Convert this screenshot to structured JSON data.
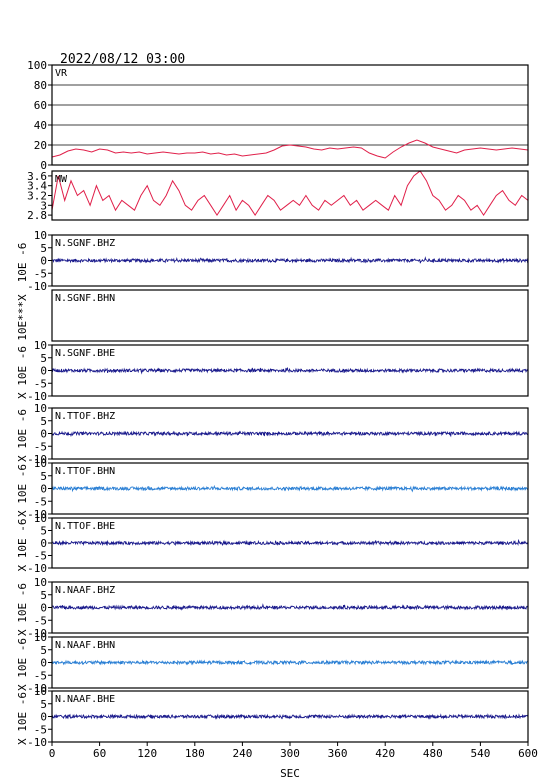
{
  "header": {
    "datetime": "2022/08/12 03:00"
  },
  "chart_data": {
    "type": "line",
    "xlabel": "SEC",
    "xlim": [
      0,
      600
    ],
    "xticks": [
      0,
      60,
      120,
      180,
      240,
      300,
      360,
      420,
      480,
      540,
      600
    ],
    "colors": {
      "vr": "#e0204a",
      "mw": "#e0204a",
      "dark_blue": "#1a1a8c",
      "light_blue": "#2a7fd4"
    },
    "panels": [
      {
        "id": "vr",
        "label": "VR",
        "ylim": [
          0,
          100
        ],
        "yticks": [
          0,
          20,
          40,
          60,
          80,
          100
        ],
        "grid": true,
        "color": "#e0204a",
        "points_x": [
          0,
          10,
          20,
          30,
          40,
          50,
          60,
          70,
          80,
          90,
          100,
          110,
          120,
          130,
          140,
          150,
          160,
          170,
          180,
          190,
          200,
          210,
          220,
          230,
          240,
          250,
          260,
          270,
          280,
          290,
          300,
          310,
          320,
          330,
          340,
          350,
          360,
          370,
          380,
          390,
          400,
          410,
          420,
          430,
          440,
          450,
          460,
          470,
          480,
          490,
          500,
          510,
          520,
          530,
          540,
          550,
          560,
          570,
          580,
          590,
          600
        ],
        "points_y": [
          8,
          10,
          14,
          16,
          15,
          13,
          16,
          15,
          12,
          13,
          12,
          13,
          11,
          12,
          13,
          12,
          11,
          12,
          12,
          13,
          11,
          12,
          10,
          11,
          9,
          10,
          11,
          12,
          15,
          19,
          20,
          19,
          18,
          16,
          15,
          17,
          16,
          17,
          18,
          17,
          12,
          9,
          7,
          13,
          18,
          22,
          25,
          22,
          18,
          16,
          14,
          12,
          15,
          16,
          17,
          16,
          15,
          16,
          17,
          16,
          15
        ]
      },
      {
        "id": "mw",
        "label": "MW",
        "ylim": [
          2.7,
          3.7
        ],
        "yticks": [
          2.8,
          3.0,
          3.2,
          3.4,
          3.6
        ],
        "grid": false,
        "color": "#e0204a",
        "points_x": [
          0,
          8,
          16,
          24,
          32,
          40,
          48,
          56,
          64,
          72,
          80,
          88,
          96,
          104,
          112,
          120,
          128,
          136,
          144,
          152,
          160,
          168,
          176,
          184,
          192,
          200,
          208,
          216,
          224,
          232,
          240,
          248,
          256,
          264,
          272,
          280,
          288,
          296,
          304,
          312,
          320,
          328,
          336,
          344,
          352,
          360,
          368,
          376,
          384,
          392,
          400,
          408,
          416,
          424,
          432,
          440,
          448,
          456,
          464,
          472,
          480,
          488,
          496,
          504,
          512,
          520,
          528,
          536,
          544,
          552,
          560,
          568,
          576,
          584,
          592,
          600
        ],
        "points_y": [
          2.9,
          3.6,
          3.1,
          3.5,
          3.2,
          3.3,
          3.0,
          3.4,
          3.1,
          3.2,
          2.9,
          3.1,
          3.0,
          2.9,
          3.2,
          3.4,
          3.1,
          3.0,
          3.2,
          3.5,
          3.3,
          3.0,
          2.9,
          3.1,
          3.2,
          3.0,
          2.8,
          3.0,
          3.2,
          2.9,
          3.1,
          3.0,
          2.8,
          3.0,
          3.2,
          3.1,
          2.9,
          3.0,
          3.1,
          3.0,
          3.2,
          3.0,
          2.9,
          3.1,
          3.0,
          3.1,
          3.2,
          3.0,
          3.1,
          2.9,
          3.0,
          3.1,
          3.0,
          2.9,
          3.2,
          3.0,
          3.4,
          3.6,
          3.7,
          3.5,
          3.2,
          3.1,
          2.9,
          3.0,
          3.2,
          3.1,
          2.9,
          3.0,
          2.8,
          3.0,
          3.2,
          3.3,
          3.1,
          3.0,
          3.2,
          3.1
        ]
      },
      {
        "id": "sgnf-bhz",
        "label": "N.SGNF.BHZ",
        "ylim": [
          -10,
          10
        ],
        "yticks": [
          -10,
          -5,
          0,
          5,
          10
        ],
        "color": "#1a1a8c",
        "amplitude": 0.6,
        "has_data": true
      },
      {
        "id": "sgnf-bhn",
        "label": "N.SGNF.BHN",
        "ylim": [
          -10,
          10
        ],
        "yticks": [],
        "color": "#1a1a8c",
        "amplitude": 0,
        "has_data": false
      },
      {
        "id": "sgnf-bhe",
        "label": "N.SGNF.BHE",
        "ylim": [
          -10,
          10
        ],
        "yticks": [
          -10,
          -5,
          0,
          5,
          10
        ],
        "color": "#1a1a8c",
        "amplitude": 0.6,
        "has_data": true
      },
      {
        "id": "ttof-bhz",
        "label": "N.TTOF.BHZ",
        "ylim": [
          -10,
          10
        ],
        "yticks": [
          -10,
          -5,
          0,
          5,
          10
        ],
        "color": "#1a1a8c",
        "amplitude": 0.6,
        "has_data": true
      },
      {
        "id": "ttof-bhn",
        "label": "N.TTOF.BHN",
        "ylim": [
          -10,
          10
        ],
        "yticks": [
          -10,
          -5,
          0,
          5,
          10
        ],
        "color": "#2a7fd4",
        "amplitude": 0.6,
        "has_data": true
      },
      {
        "id": "ttof-bhe",
        "label": "N.TTOF.BHE",
        "ylim": [
          -10,
          10
        ],
        "yticks": [
          -10,
          -5,
          0,
          5,
          10
        ],
        "color": "#1a1a8c",
        "amplitude": 0.6,
        "has_data": true
      },
      {
        "id": "naaf-bhz",
        "label": "N.NAAF.BHZ",
        "ylim": [
          -10,
          10
        ],
        "yticks": [
          -10,
          -5,
          0,
          5,
          10
        ],
        "color": "#1a1a8c",
        "amplitude": 0.6,
        "has_data": true
      },
      {
        "id": "naaf-bhn",
        "label": "N.NAAF.BHN",
        "ylim": [
          -10,
          10
        ],
        "yticks": [
          -10,
          -5,
          0,
          5,
          10
        ],
        "color": "#2a7fd4",
        "amplitude": 0.6,
        "has_data": true
      },
      {
        "id": "naaf-bhe",
        "label": "N.NAAF.BHE",
        "ylim": [
          -10,
          10
        ],
        "yticks": [
          -10,
          -5,
          0,
          5,
          10
        ],
        "color": "#1a1a8c",
        "amplitude": 0.6,
        "has_data": true
      }
    ],
    "y_axis_labels": [
      {
        "panel": "sgnf-bhz",
        "text": "10E -6"
      },
      {
        "panel": "sgnf-bhn",
        "text": "10E***X"
      },
      {
        "panel": "sgnf-bhe",
        "text": "X 10E -6"
      },
      {
        "panel": "ttof-bhz",
        "text": "X 10E -6"
      },
      {
        "panel": "ttof-bhn",
        "text": "X 10E -6"
      },
      {
        "panel": "ttof-bhe",
        "text": "X 10E -6"
      },
      {
        "panel": "naaf-bhz",
        "text": "X 10E -6"
      },
      {
        "panel": "naaf-bhn",
        "text": "X 10E -6"
      },
      {
        "panel": "naaf-bhe",
        "text": "X 10E -6"
      }
    ]
  }
}
